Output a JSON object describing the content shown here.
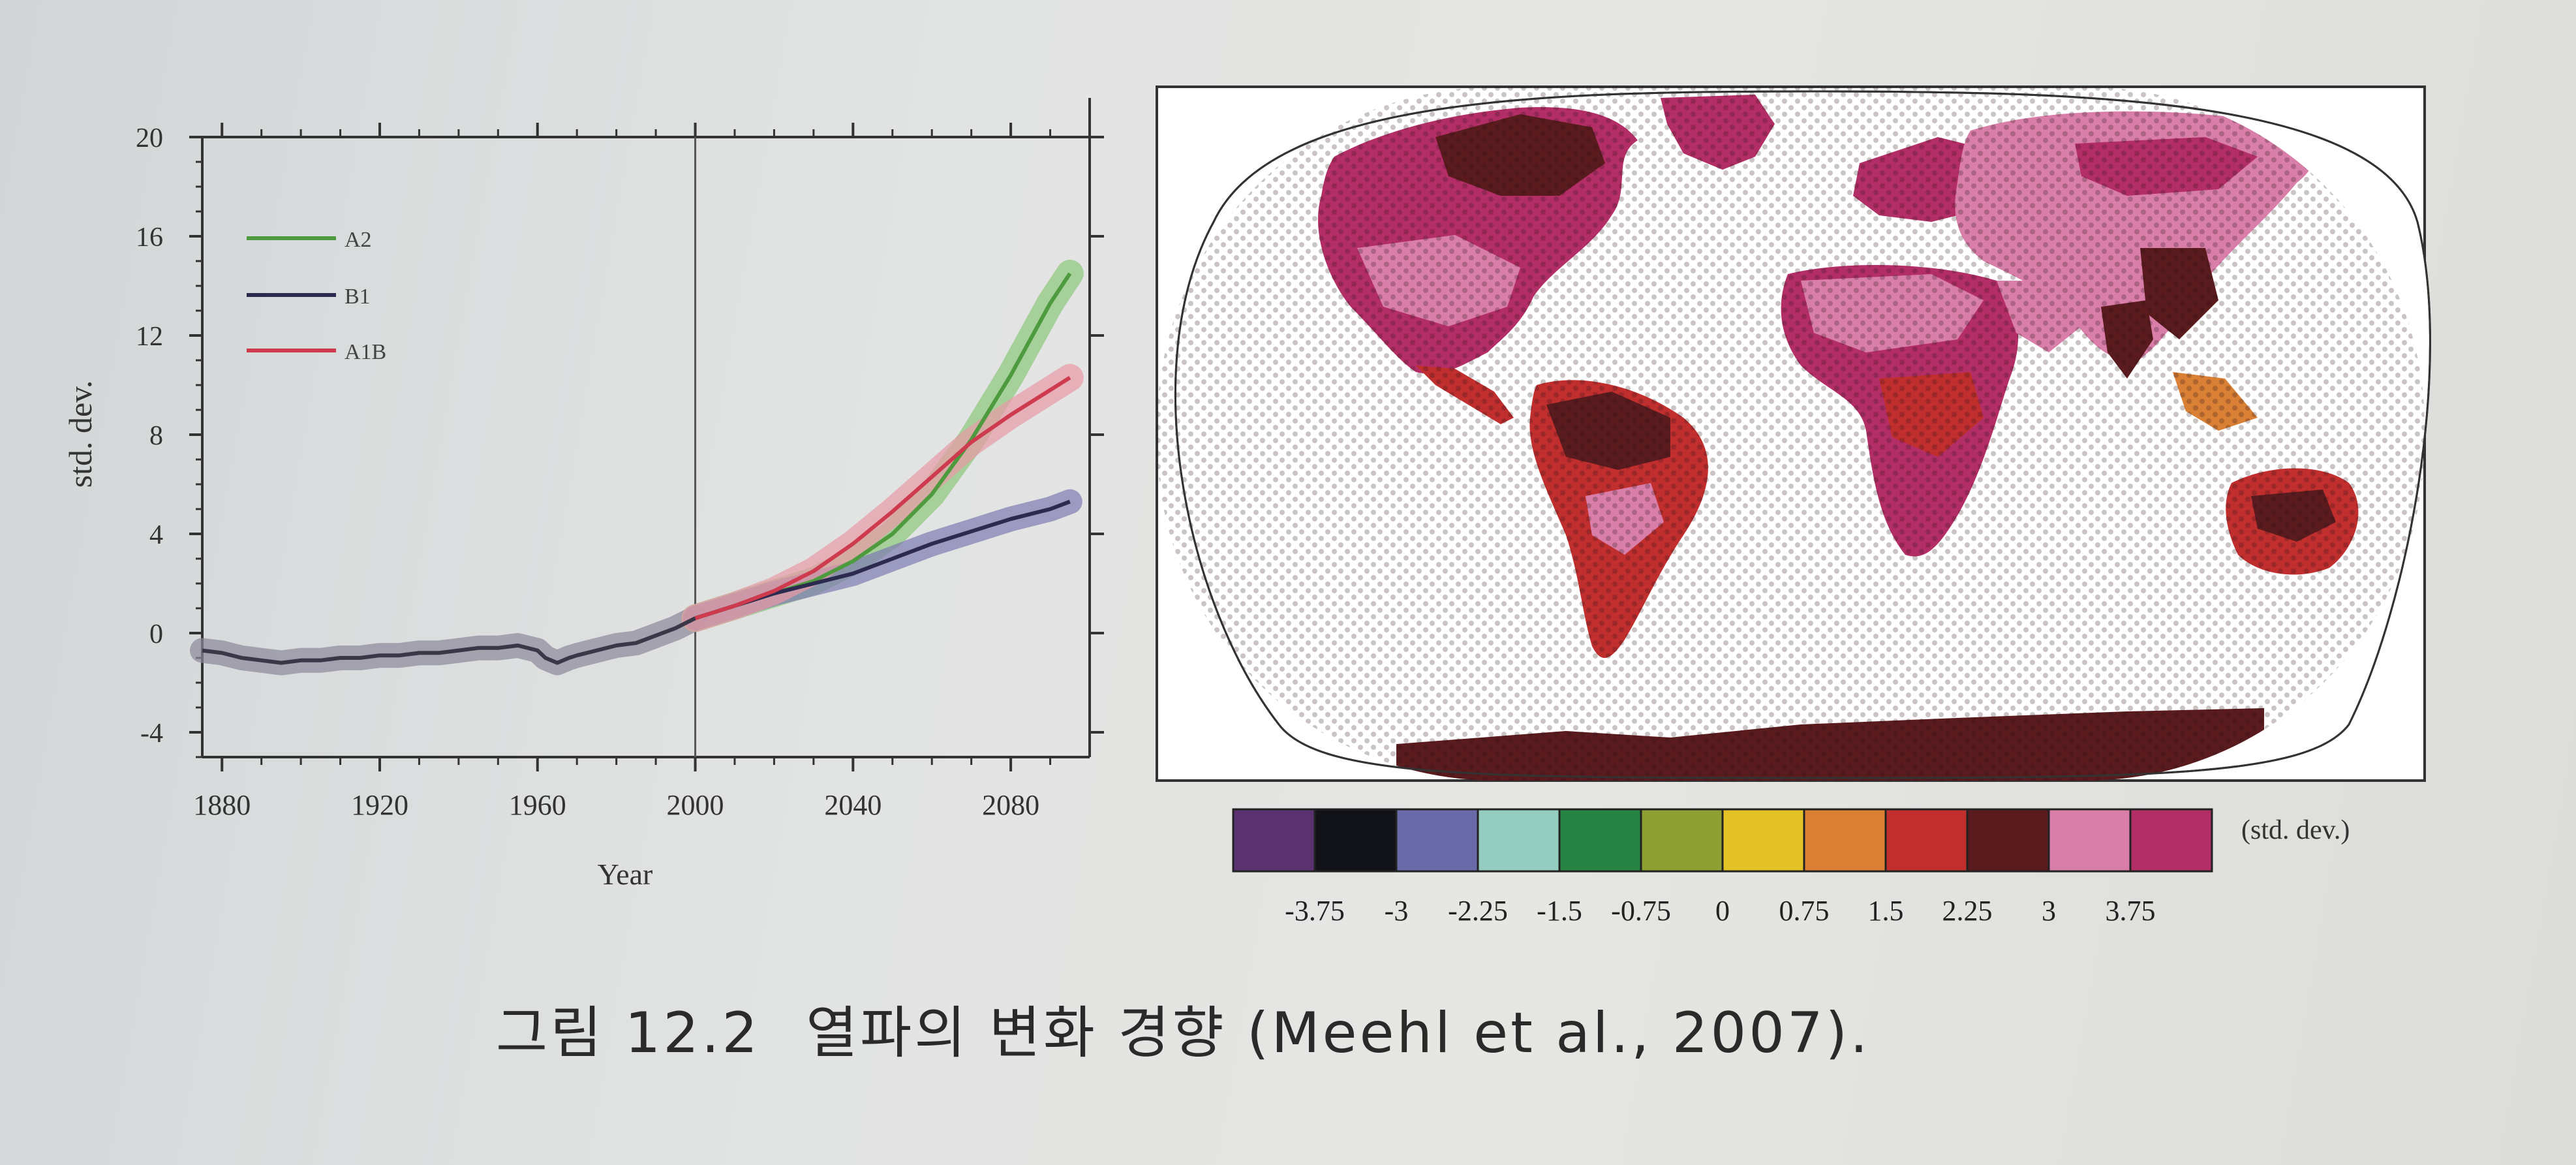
{
  "caption": {
    "label": "그림 12.2",
    "text": "열파의 변화 경향 (Meehl et al., 2007)."
  },
  "colors": {
    "A2": "#4e9a3e",
    "B1": "#2c2a4e",
    "A1B": "#cf3b4e",
    "history": "#3a3848",
    "band_A2": "#8bc77a",
    "band_B1": "#7e7ab0",
    "band_A1B": "#e89aa6",
    "band_history": "#8a8898"
  },
  "chart_data": [
    {
      "type": "line",
      "title": "",
      "xlabel": "Year",
      "ylabel": "std. dev.",
      "xlim": [
        1875,
        2100
      ],
      "ylim": [
        -5,
        20
      ],
      "xticks": [
        1880,
        1920,
        1960,
        2000,
        2040,
        2080
      ],
      "yticks": [
        -4,
        0,
        4,
        8,
        12,
        16,
        20
      ],
      "vline_x": 2000,
      "legend": {
        "placement": "top-left",
        "entries": [
          "A2",
          "B1",
          "A1B"
        ]
      },
      "series": [
        {
          "name": "",
          "role": "history",
          "x": [
            1875,
            1880,
            1885,
            1890,
            1895,
            1900,
            1905,
            1910,
            1915,
            1920,
            1925,
            1930,
            1935,
            1940,
            1945,
            1950,
            1955,
            1960,
            1962,
            1965,
            1968,
            1970,
            1975,
            1980,
            1985,
            1990,
            1995,
            2000
          ],
          "y": [
            -0.7,
            -0.8,
            -1.0,
            -1.1,
            -1.2,
            -1.1,
            -1.1,
            -1.0,
            -1.0,
            -0.9,
            -0.9,
            -0.8,
            -0.8,
            -0.7,
            -0.6,
            -0.6,
            -0.5,
            -0.7,
            -1.0,
            -1.2,
            -1.0,
            -0.9,
            -0.7,
            -0.5,
            -0.4,
            -0.1,
            0.2,
            0.6
          ]
        },
        {
          "name": "A2",
          "x": [
            2000,
            2010,
            2020,
            2030,
            2040,
            2050,
            2060,
            2070,
            2080,
            2090,
            2095
          ],
          "y": [
            0.6,
            1.1,
            1.6,
            2.1,
            2.9,
            4.0,
            5.6,
            7.8,
            10.4,
            13.3,
            14.5
          ]
        },
        {
          "name": "B1",
          "x": [
            2000,
            2010,
            2020,
            2030,
            2040,
            2050,
            2060,
            2070,
            2080,
            2090,
            2095
          ],
          "y": [
            0.6,
            1.1,
            1.6,
            2.0,
            2.4,
            3.0,
            3.6,
            4.1,
            4.6,
            5.0,
            5.3
          ]
        },
        {
          "name": "A1B",
          "x": [
            2000,
            2010,
            2020,
            2030,
            2040,
            2050,
            2060,
            2070,
            2080,
            2090,
            2095
          ],
          "y": [
            0.6,
            1.1,
            1.7,
            2.5,
            3.6,
            4.9,
            6.3,
            7.7,
            8.8,
            9.8,
            10.3
          ]
        }
      ]
    },
    {
      "type": "heatmap",
      "title": "",
      "colorbar": {
        "unit": "(std. dev.)",
        "ticks": [
          "-3.75",
          "-3",
          "-2.25",
          "-1.5",
          "-0.75",
          "0",
          "0.75",
          "1.5",
          "2.25",
          "3",
          "3.75"
        ],
        "colors": [
          "#5b3170",
          "#121219",
          "#6a6aa8",
          "#95ccc0",
          "#268444",
          "#8e9f33",
          "#e2c227",
          "#d98034",
          "#c02e2e",
          "#5a1b1e",
          "#d87ea8",
          "#b32e66"
        ]
      }
    }
  ]
}
